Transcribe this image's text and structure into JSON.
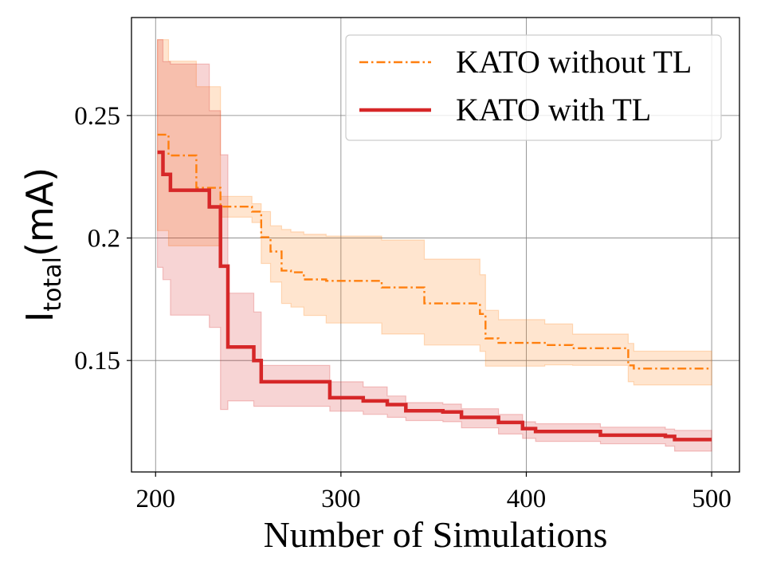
{
  "chart_data": {
    "type": "line",
    "xlabel": "Number of Simulations",
    "ylabel_main": "I",
    "ylabel_sub": "total",
    "ylabel_unit": "(mA)",
    "xlim": [
      187,
      515
    ],
    "ylim": [
      0.1045,
      0.29
    ],
    "xticks": [
      200,
      300,
      400,
      500
    ],
    "xtick_labels": [
      "200",
      "300",
      "400",
      "500"
    ],
    "yticks": [
      0.15,
      0.2,
      0.25
    ],
    "ytick_labels": [
      "0.15",
      "0.2",
      "0.25"
    ],
    "grid": true,
    "legend_position": "top-right",
    "series": [
      {
        "name": "KATO without TL",
        "color": "#ff7f0e",
        "style": "dashdot",
        "x": [
          201,
          207,
          207,
          222,
          222,
          235,
          235,
          252,
          252,
          257,
          257,
          262,
          262,
          268,
          268,
          273,
          273,
          280,
          280,
          292,
          292,
          322,
          322,
          345,
          345,
          375,
          375,
          378,
          378,
          385,
          385,
          410,
          410,
          425,
          425,
          455,
          455,
          458,
          458,
          500
        ],
        "y": [
          0.2422,
          0.2422,
          0.2337,
          0.2337,
          0.2205,
          0.2205,
          0.2128,
          0.2128,
          0.2108,
          0.2108,
          0.2003,
          0.2003,
          0.1945,
          0.1945,
          0.1867,
          0.1867,
          0.186,
          0.186,
          0.1831,
          0.1831,
          0.1825,
          0.1825,
          0.1798,
          0.1798,
          0.1733,
          0.1733,
          0.169,
          0.169,
          0.159,
          0.159,
          0.1572,
          0.1572,
          0.1563,
          0.1563,
          0.155,
          0.155,
          0.148,
          0.148,
          0.1467,
          0.1467
        ],
        "upper": [
          0.281,
          0.281,
          0.2722,
          0.2722,
          0.2618,
          0.2618,
          0.217,
          0.217,
          0.214,
          0.214,
          0.2108,
          0.2108,
          0.205,
          0.205,
          0.2035,
          0.2035,
          0.2025,
          0.2025,
          0.2015,
          0.2015,
          0.2008,
          0.2008,
          0.1992,
          0.1992,
          0.1914,
          0.1914,
          0.185,
          0.185,
          0.1705,
          0.1705,
          0.1667,
          0.1667,
          0.1649,
          0.1649,
          0.1608,
          0.1608,
          0.157,
          0.157,
          0.1538,
          0.1538
        ],
        "lower": [
          0.203,
          0.203,
          0.1968,
          0.1968,
          0.1968,
          0.1968,
          0.2085,
          0.2085,
          0.2063,
          0.2063,
          0.1896,
          0.1896,
          0.182,
          0.182,
          0.1733,
          0.1733,
          0.1718,
          0.1718,
          0.1684,
          0.1684,
          0.1653,
          0.1653,
          0.1608,
          0.1608,
          0.1563,
          0.1563,
          0.1537,
          0.1537,
          0.1477,
          0.1477,
          0.1477,
          0.1477,
          0.1482,
          0.1482,
          0.148,
          0.148,
          0.1413,
          0.1413,
          0.14,
          0.14
        ]
      },
      {
        "name": "KATO with TL",
        "color": "#d62728",
        "style": "solid",
        "x": [
          201,
          204,
          204,
          208,
          208,
          229,
          229,
          235,
          235,
          239,
          239,
          253,
          253,
          257,
          257,
          294,
          294,
          312,
          312,
          325,
          325,
          335,
          335,
          355,
          355,
          365,
          365,
          385,
          385,
          398,
          398,
          405,
          405,
          440,
          440,
          475,
          475,
          480,
          480,
          500
        ],
        "y": [
          0.235,
          0.235,
          0.226,
          0.226,
          0.2195,
          0.2195,
          0.2127,
          0.2127,
          0.1885,
          0.1885,
          0.1555,
          0.1555,
          0.15,
          0.15,
          0.1413,
          0.1413,
          0.1348,
          0.1348,
          0.1335,
          0.1335,
          0.132,
          0.132,
          0.1295,
          0.1295,
          0.129,
          0.129,
          0.1268,
          0.1268,
          0.1247,
          0.1247,
          0.1222,
          0.1222,
          0.121,
          0.121,
          0.1195,
          0.1195,
          0.119,
          0.119,
          0.1177,
          0.1177
        ],
        "upper": [
          0.281,
          0.281,
          0.272,
          0.272,
          0.271,
          0.271,
          0.252,
          0.252,
          0.234,
          0.234,
          0.1775,
          0.1775,
          0.1698,
          0.1698,
          0.148,
          0.148,
          0.1413,
          0.1413,
          0.1392,
          0.1392,
          0.1355,
          0.1355,
          0.1328,
          0.1328,
          0.1322,
          0.1322,
          0.1303,
          0.1303,
          0.128,
          0.128,
          0.125,
          0.125,
          0.1242,
          0.1242,
          0.1228,
          0.1228,
          0.122,
          0.122,
          0.1215,
          0.1215
        ],
        "lower": [
          0.188,
          0.188,
          0.183,
          0.183,
          0.1685,
          0.1685,
          0.1635,
          0.1635,
          0.13,
          0.13,
          0.1335,
          0.1335,
          0.1313,
          0.1313,
          0.1313,
          0.1313,
          0.1293,
          0.1293,
          0.128,
          0.128,
          0.1268,
          0.1268,
          0.1255,
          0.1255,
          0.125,
          0.125,
          0.1225,
          0.1225,
          0.12,
          0.12,
          0.1182,
          0.1182,
          0.117,
          0.117,
          0.116,
          0.116,
          0.115,
          0.115,
          0.113,
          0.113
        ]
      }
    ]
  }
}
